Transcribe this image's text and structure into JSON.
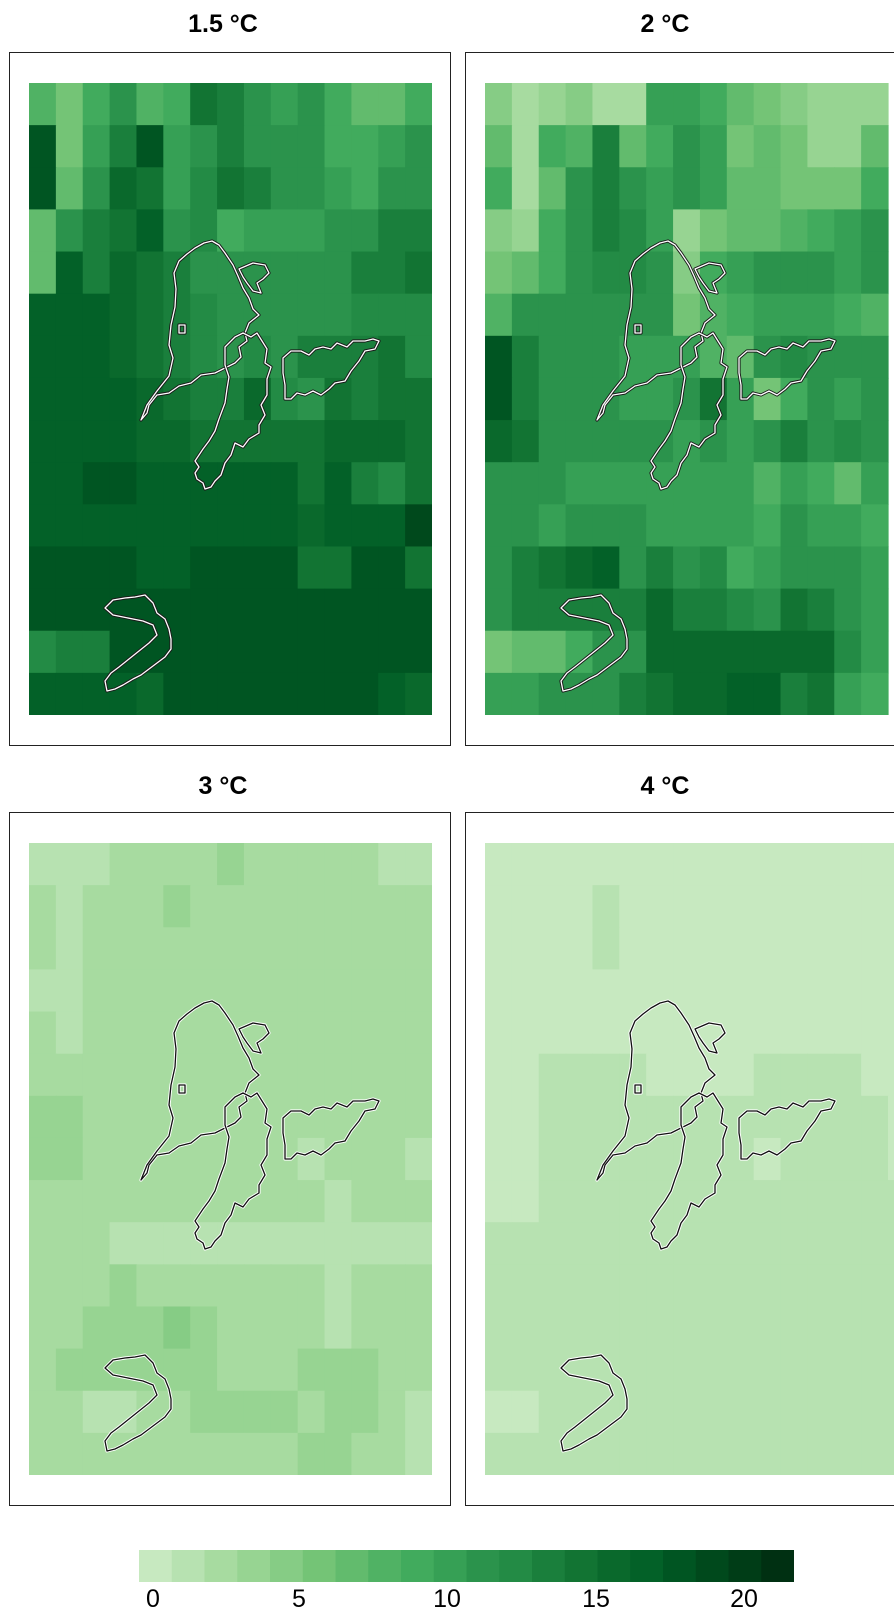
{
  "panels": [
    {
      "title": "1.5 °C",
      "outline": "white",
      "grid": [
        "9,7,10,12,9,10,16,15,13,11,12,10,8,8,10",
        "20,7,11,15,20,11,13,15,13,12,12,10,10,11,12",
        "20,8,13,17,16,11,14,16,15,12,12,11,10,12,13",
        "8,12,15,16,18,12,14,10,11,11,11,12,13,15,15",
        "8,18,15,17,16,15,13,12,12,12,12,13,15,15,16",
        "19,19,18,17,16,15,14,13,13,13,13,13,14,14,14",
        "19,19,18,17,16,15,14,13,14,13,15,15,15,16,14",
        "19,19,19,18,17,16,15,15,17,14,13,16,15,16,16",
        "19,19,18,18,17,17,16,16,16,16,16,17,17,17,16",
        "19,19,20,20,19,19,19,19,19,19,16,19,15,14,16",
        "19,19,19,19,19,19,19,19,19,19,17,18,18,18,21",
        "20,20,20,20,19,19,20,20,20,20,16,16,20,20,16",
        "20,20,20,20,20,20,20,20,20,20,20,20,20,20,20",
        "14,15,15,20,20,20,20,20,20,20,20,20,20,20,20",
        "19,19,18,18,17,20,20,20,20,20,20,20,20,19,17"
      ]
    },
    {
      "title": "2 °C",
      "outline": "white",
      "grid": [
        "5,3,4,5,3,3,11,11,10,8,6,5,4,4,4",
        "8,3,10,9,15,8,10,12,11,7,8,6,4,4,8",
        "10,3,8,12,15,13,11,13,11,8,8,7,6,7,10",
        "5,4,10,13,15,14,11,4,7,8,8,9,10,11,12",
        "6,8,10,13,14,14,12,5,10,11,13,12,12,11,13",
        "9,12,13,12,13,13,12,6,9,10,11,11,11,10,9",
        "20,15,13,13,12,11,11,11,9,8,13,14,12,13,12",
        "20,15,13,13,12,11,11,13,16,11,6,10,13,11,12",
        "17,16,13,13,12,12,12,11,12,11,13,15,12,14,12",
        "12,12,13,11,11,11,11,11,11,11,9,11,10,8,11",
        "12,12,11,13,13,13,11,11,11,11,10,12,11,11,10",
        "12,15,16,17,18,13,15,12,14,10,11,12,12,12,11",
        "12,15,15,15,15,15,17,15,15,14,12,16,15,13,11",
        "7,8,8,10,13,13,17,17,17,17,17,17,17,14,11",
        "11,11,12,12,13,15,16,17,17,18,18,15,16,11,10"
      ]
    },
    {
      "title": "3 °C",
      "outline": "black",
      "grid": [
        "2,2,2,3,3,3,3,4,3,3,3,3,3,2,2,3",
        "3,2,3,3,3,4,3,3,3,3,3,3,3,3,3,3",
        "3,2,3,3,3,3,3,3,3,3,3,3,3,3,3,3",
        "2,2,3,3,3,3,3,3,3,3,3,3,3,3,3,3",
        "3,2,3,3,3,3,3,3,3,3,3,3,3,3,3,3",
        "3,3,3,3,3,3,3,3,3,3,3,3,3,3,3,3",
        "4,4,3,3,3,3,3,3,3,3,3,3,3,3,3,3",
        "4,4,3,3,3,3,3,3,3,3,2,3,3,3,2,3",
        "3,3,3,3,3,3,3,3,3,3,3,2,3,3,3,3",
        "3,3,3,2,2,2,2,2,2,2,2,2,2,2,2,3",
        "3,3,3,4,3,3,3,3,3,3,3,2,3,3,3,3",
        "3,3,4,4,4,5,4,3,3,3,3,2,3,3,3,3",
        "3,4,4,4,4,4,4,3,3,3,4,4,4,3,3,3",
        "3,3,2,2,3,3,4,4,4,4,3,4,4,3,2,3",
        "3,3,3,3,3,3,3,3,3,3,4,4,3,3,2,3"
      ]
    },
    {
      "title": "4 °C",
      "outline": "black",
      "grid": [
        "1,1,1,1,1,1,1,1,1,1,1,1,1,1,1,1",
        "1,1,1,1,2,1,1,1,1,1,1,1,1,1,1,1",
        "1,1,1,1,2,1,1,1,1,1,1,1,1,1,1,1",
        "1,1,1,1,1,1,1,1,1,1,1,1,1,1,1,1",
        "1,1,1,1,1,1,1,1,1,1,1,1,1,1,1,1",
        "1,1,2,2,2,2,1,1,1,1,2,2,2,2,1,1",
        "1,1,2,2,2,2,2,2,2,2,2,2,2,2,2,1",
        "1,1,2,2,2,2,2,2,2,2,1,2,2,2,2,1",
        "1,1,2,2,2,2,2,2,2,2,2,2,2,2,2,2",
        "2,2,2,2,2,2,2,2,2,2,2,2,2,2,2,2",
        "2,2,2,2,2,2,2,2,2,2,2,2,2,2,2,2",
        "2,2,2,2,2,2,2,2,2,2,2,2,2,2,2,2",
        "2,2,2,2,2,2,2,2,2,2,2,2,2,2,2,2",
        "1,1,2,2,2,2,2,2,2,2,2,2,2,2,2,2",
        "2,2,2,2,2,2,2,2,2,2,2,2,2,2,2,2"
      ]
    }
  ],
  "colorbar": {
    "min": 0,
    "max": 24,
    "ticks": [
      "0",
      "5",
      "10",
      "15",
      "20"
    ],
    "colors": [
      "#c7e9c0",
      "#b7e2b1",
      "#a7dba0",
      "#97d492",
      "#86cc85",
      "#74c476",
      "#62bb6d",
      "#50b264",
      "#41ab5d",
      "#36a055",
      "#2b934c",
      "#238b45",
      "#1a7f3c",
      "#127433",
      "#0a692c",
      "#036128",
      "#005522",
      "#00491c",
      "#003d17",
      "#003012"
    ]
  }
}
